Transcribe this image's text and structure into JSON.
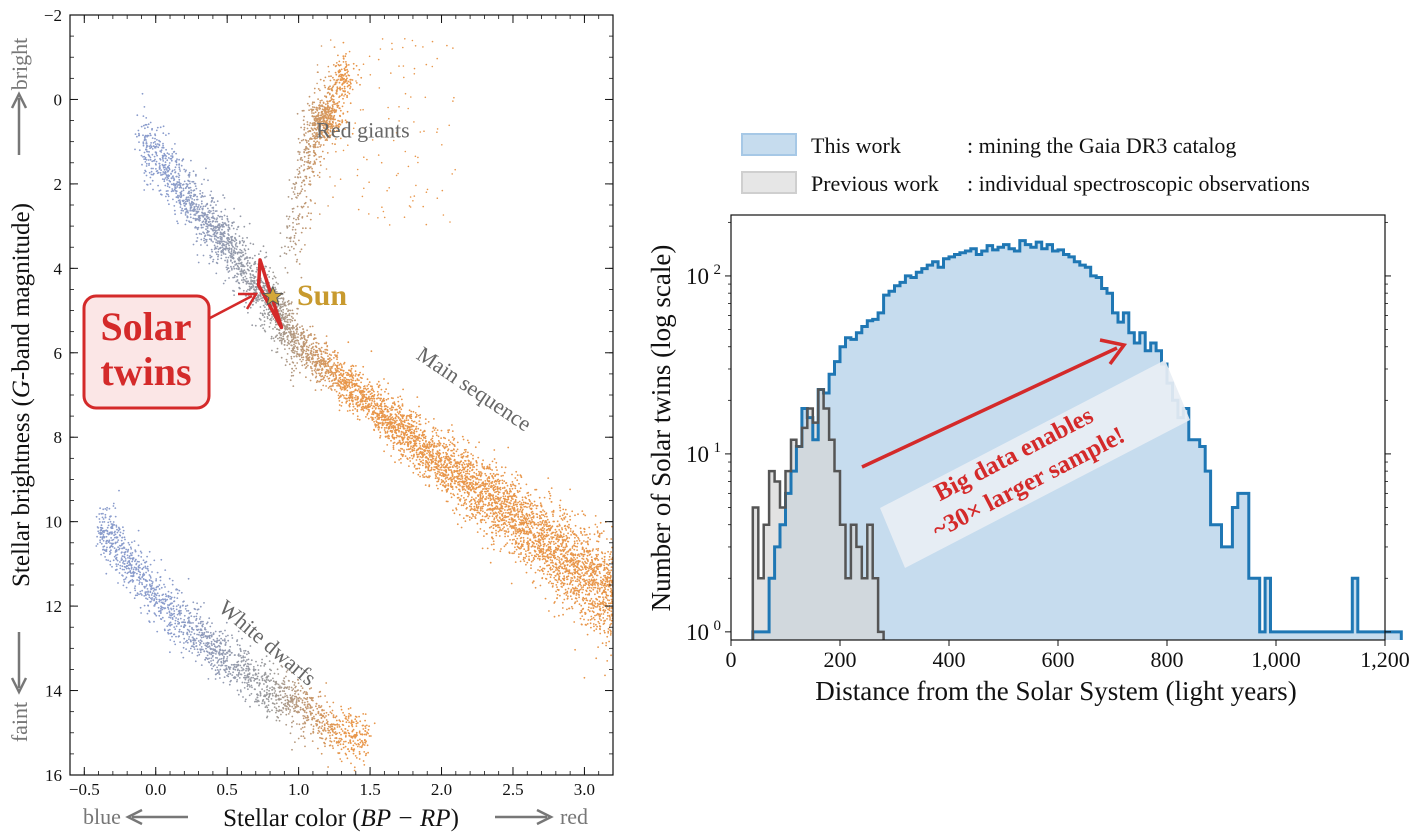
{
  "chart_data": [
    {
      "type": "scatter",
      "title": "",
      "xlabel": "Stellar color (BP − RP)",
      "xlabel_plain": "Stellar color (",
      "xlabel_italic": "BP − RP",
      "xlabel_close": ")",
      "ylabel_pre": "Stellar brightness (",
      "ylabel_italic": "G",
      "ylabel_post": "-band magnitude)",
      "xlim": [
        -0.6,
        3.2
      ],
      "ylim": [
        16,
        -2
      ],
      "y_inverted": true,
      "xticks": [
        -0.5,
        0.0,
        0.5,
        1.0,
        1.5,
        2.0,
        2.5,
        3.0
      ],
      "xtick_labels": [
        "−0.5",
        "0.0",
        "0.5",
        "1.0",
        "1.5",
        "2.0",
        "2.5",
        "3.0"
      ],
      "yticks": [
        -2,
        0,
        2,
        4,
        6,
        8,
        10,
        12,
        14,
        16
      ],
      "ytick_labels": [
        "−2",
        "0",
        "2",
        "4",
        "6",
        "8",
        "10",
        "12",
        "14",
        "16"
      ],
      "color_scale": {
        "blue": "#8a9ccc",
        "grey": "#9a9a9a",
        "orange": "#e8964a"
      },
      "regions": [
        {
          "name": "Red giants",
          "x": 1.45,
          "y": 0.9
        },
        {
          "name": "Main sequence",
          "x": 2.2,
          "y": 7.0,
          "rotation": 34
        },
        {
          "name": "White dwarfs",
          "x": 0.75,
          "y": 13.0,
          "rotation": 40
        }
      ],
      "sun": {
        "label": "Sun",
        "x": 0.82,
        "y": 4.67
      },
      "solar_twins_box": {
        "line1": "Solar",
        "line2": "twins"
      },
      "twins_region": [
        [
          0.73,
          3.8
        ],
        [
          0.88,
          5.4
        ],
        [
          0.72,
          4.4
        ]
      ],
      "side_labels": {
        "bright": "bright",
        "faint": "faint",
        "blue": "blue",
        "red": "red"
      },
      "main_sequence_ridge": [
        [
          -0.1,
          1.0
        ],
        [
          0.3,
          2.6
        ],
        [
          0.6,
          3.9
        ],
        [
          0.8,
          4.8
        ],
        [
          1.0,
          5.8
        ],
        [
          1.5,
          7.2
        ],
        [
          2.0,
          8.6
        ],
        [
          2.5,
          9.9
        ],
        [
          3.0,
          11.2
        ],
        [
          3.2,
          11.8
        ]
      ],
      "red_giant_branch": [
        [
          0.95,
          3.5
        ],
        [
          1.0,
          2.5
        ],
        [
          1.05,
          1.5
        ],
        [
          1.15,
          0.5
        ],
        [
          1.3,
          -0.5
        ]
      ],
      "white_dwarf_ridge": [
        [
          -0.35,
          10.2
        ],
        [
          0.0,
          11.8
        ],
        [
          0.4,
          13.0
        ],
        [
          0.8,
          14.0
        ],
        [
          1.2,
          14.8
        ],
        [
          1.4,
          15.1
        ]
      ]
    },
    {
      "type": "histogram",
      "title": "",
      "xlabel": "Distance from the Solar System  (light years)",
      "ylabel": "Number of Solar twins (log scale)",
      "xlim": [
        0,
        1200
      ],
      "ylim": [
        0.9,
        220
      ],
      "yscale": "log",
      "xticks": [
        0,
        200,
        400,
        600,
        800,
        1000,
        1200
      ],
      "xtick_labels": [
        "0",
        "200",
        "400",
        "600",
        "800",
        "1,000",
        "1,200"
      ],
      "yticks": [
        1,
        10,
        100
      ],
      "ytick_bases": [
        "10",
        "10",
        "10"
      ],
      "ytick_exps": [
        "0",
        "1",
        "2"
      ],
      "bin_width": 10,
      "series": [
        {
          "name": "This work",
          "legend_desc": ": mining the Gaia DR3 catalog",
          "color": "#1f77b4",
          "fill": "#c6dcee",
          "bin_start": 40,
          "counts": [
            1,
            1,
            1,
            2,
            3,
            4,
            6,
            8,
            11,
            18,
            16,
            12,
            23,
            22,
            28,
            33,
            40,
            45,
            44,
            48,
            52,
            56,
            57,
            62,
            78,
            82,
            88,
            92,
            100,
            98,
            105,
            110,
            115,
            120,
            112,
            125,
            128,
            132,
            135,
            138,
            142,
            132,
            138,
            148,
            140,
            145,
            150,
            142,
            138,
            158,
            150,
            145,
            155,
            142,
            150,
            138,
            140,
            132,
            128,
            120,
            115,
            112,
            100,
            98,
            85,
            80,
            62,
            55,
            62,
            48,
            42,
            48,
            38,
            42,
            38,
            32,
            25,
            20,
            16,
            18,
            12,
            12,
            11,
            8,
            4,
            4,
            3,
            3,
            5,
            6,
            6,
            2,
            2,
            1,
            2,
            1,
            1,
            1,
            1,
            1,
            1,
            1,
            1,
            1,
            1,
            1,
            1,
            1,
            1,
            1,
            2,
            1,
            1,
            1,
            1,
            1,
            1,
            1,
            1
          ]
        },
        {
          "name": "Previous work",
          "legend_desc": ": individual spectroscopic observations",
          "color": "#555555",
          "fill": "#d6d6d6",
          "bin_start": 40,
          "counts": [
            5,
            2,
            4,
            8,
            7,
            5,
            8,
            12,
            11,
            14,
            18,
            15,
            23,
            18,
            12,
            8,
            4,
            2,
            4,
            3,
            2,
            4,
            2,
            1
          ]
        }
      ],
      "annotation": {
        "line1": "Big data enables",
        "line2": "~30× larger sample!",
        "color": "#d42a2a"
      }
    }
  ]
}
